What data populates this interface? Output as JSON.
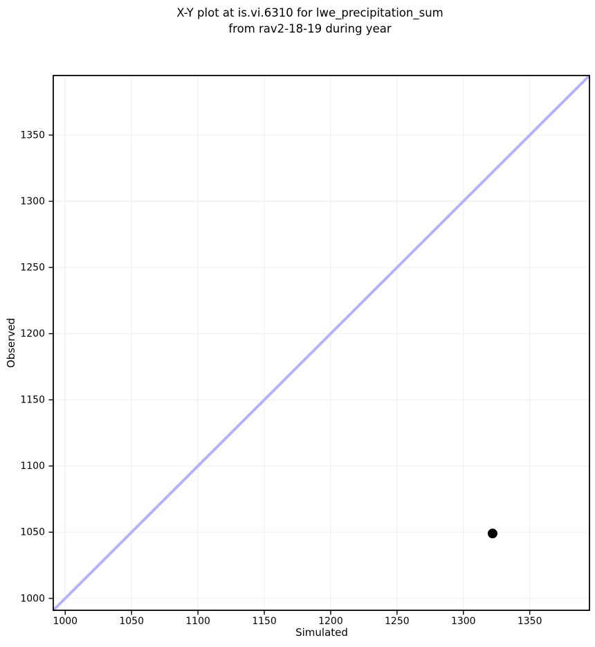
{
  "chart_data": {
    "type": "scatter",
    "title": "X-Y plot at is.vi.6310 for lwe_precipitation_sum\nfrom rav2-18-19 during year",
    "title_lines": [
      "X-Y plot at is.vi.6310 for lwe_precipitation_sum",
      "from rav2-18-19 during year"
    ],
    "xlabel": "Simulated",
    "ylabel": "Observed",
    "xlim": [
      991,
      1395
    ],
    "ylim": [
      991,
      1395
    ],
    "xticks": [
      1000,
      1050,
      1100,
      1150,
      1200,
      1250,
      1300,
      1350
    ],
    "yticks": [
      1000,
      1050,
      1100,
      1150,
      1200,
      1250,
      1300,
      1350
    ],
    "grid": true,
    "legend": false,
    "series": [
      {
        "name": "observed-vs-simulated",
        "marker": "circle",
        "color": "#000000",
        "points": [
          {
            "x": 1322,
            "y": 1049
          }
        ]
      }
    ],
    "identity_line": {
      "x": [
        991,
        1395
      ],
      "y": [
        991,
        1395
      ],
      "color": "#b2b2ff",
      "width": 4
    },
    "colors": {
      "background": "#ffffff",
      "grid": "#ededed",
      "spine": "#000000",
      "text": "#000000"
    }
  }
}
